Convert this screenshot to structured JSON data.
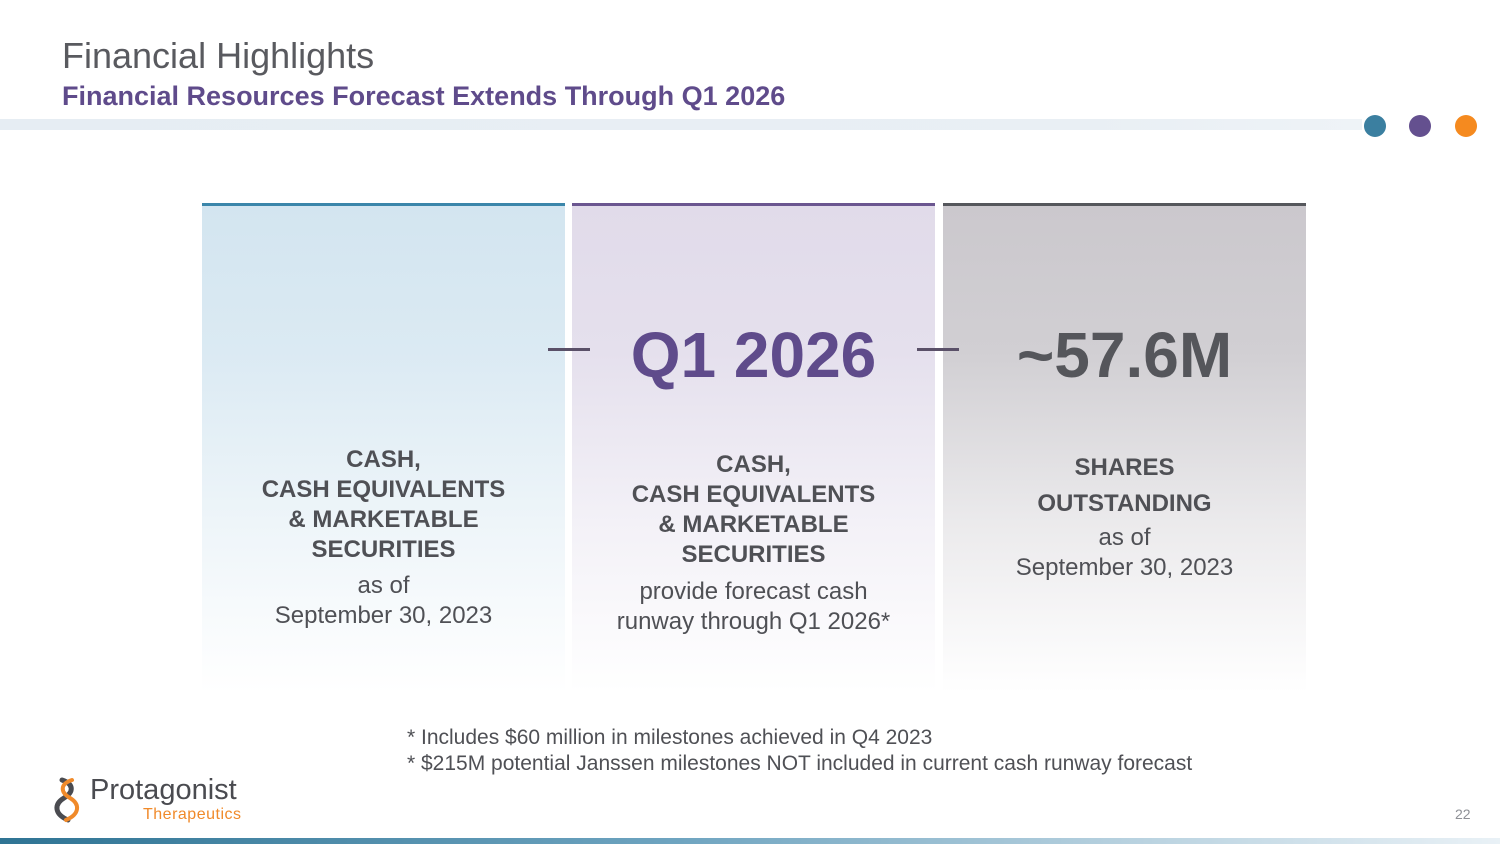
{
  "header": {
    "title": "Financial Highlights",
    "subtitle": "Financial Resources Forecast Extends Through Q1 2026"
  },
  "accent_colors": {
    "teal": "#3b7fa0",
    "purple": "#64508f",
    "orange": "#f58a1f"
  },
  "cards": [
    {
      "value": "",
      "label_lines": [
        "CASH,",
        "CASH EQUIVALENTS",
        "& MARKETABLE",
        "SECURITIES"
      ],
      "sub_lines": [
        "as of",
        "September 30, 2023"
      ]
    },
    {
      "value": "Q1 2026",
      "label_lines": [
        "CASH,",
        "CASH EQUIVALENTS",
        "& MARKETABLE",
        "SECURITIES"
      ],
      "sub_lines": [
        "provide forecast cash",
        "runway through Q1 2026*"
      ]
    },
    {
      "value": "~57.6M",
      "label_lines": [
        "SHARES",
        "OUTSTANDING"
      ],
      "sub_lines": [
        "as of",
        "September 30, 2023"
      ]
    }
  ],
  "footnotes": [
    "* Includes $60 million in milestones achieved in Q4 2023",
    "* $215M potential Janssen milestones NOT included in current cash runway forecast"
  ],
  "logo": {
    "name": "Protagonist",
    "tagline": "Therapeutics"
  },
  "page_number": "22"
}
